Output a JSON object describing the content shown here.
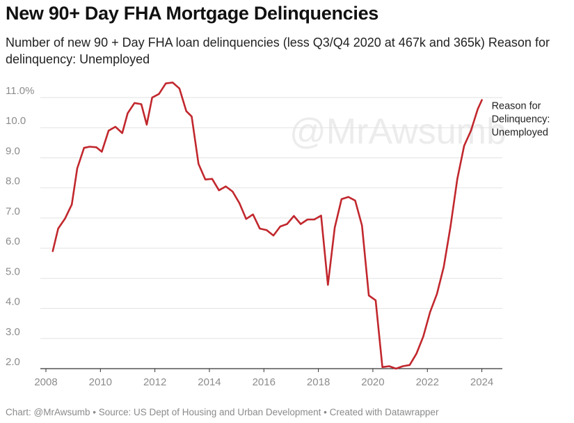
{
  "title": "New 90+ Day FHA Mortgage Delinquencies",
  "subtitle": "Number of new 90 + Day FHA loan delinquencies (less Q3/Q4 2020 at 467k and 365k) Reason for delinquency: Unemployed",
  "footer": "Chart: @MrAwsumb • Source: US Dept of Housing and Urban Development • Created with Datawrapper",
  "watermark": "@MrAwsumb",
  "colors": {
    "line": "#c1272d",
    "grid": "#e2e2e2",
    "tick": "#8c8c8c"
  },
  "chart_data": {
    "type": "line",
    "title": "New 90+ Day FHA Mortgage Delinquencies",
    "subtitle": "Number of new 90 + Day FHA loan delinquencies (less Q3/Q4 2020 at 467k and 365k) Reason for delinquency: Unemployed",
    "xlim": [
      2008,
      2024.5
    ],
    "ylim": [
      2.0,
      11.0
    ],
    "grid": true,
    "y_ticks": [
      2.0,
      3.0,
      4.0,
      5.0,
      6.0,
      7.0,
      8.0,
      9.0,
      10.0,
      11.0
    ],
    "y_tick_labels": [
      "2.0",
      "3.0",
      "4.0",
      "5.0",
      "6.0",
      "7.0",
      "8.0",
      "9.0",
      "10.0",
      "11.0%"
    ],
    "x_ticks": [
      2008,
      2010,
      2012,
      2014,
      2016,
      2018,
      2020,
      2022,
      2024
    ],
    "x_tick_labels": [
      "2008",
      "2010",
      "2012",
      "2014",
      "2016",
      "2018",
      "2020",
      "2022",
      "2024"
    ],
    "series": [
      {
        "name": "Reason for Delinquency: Unemployed",
        "label_lines": [
          "Reason for",
          "Delinquency:",
          "Unemployed"
        ],
        "points": [
          [
            2008.25,
            5.9
          ],
          [
            2008.45,
            6.65
          ],
          [
            2008.7,
            6.98
          ],
          [
            2008.95,
            7.45
          ],
          [
            2009.15,
            8.65
          ],
          [
            2009.4,
            9.33
          ],
          [
            2009.6,
            9.37
          ],
          [
            2009.85,
            9.35
          ],
          [
            2010.05,
            9.2
          ],
          [
            2010.3,
            9.9
          ],
          [
            2010.55,
            10.03
          ],
          [
            2010.8,
            9.82
          ],
          [
            2011.0,
            10.48
          ],
          [
            2011.25,
            10.82
          ],
          [
            2011.5,
            10.78
          ],
          [
            2011.7,
            10.1
          ],
          [
            2011.9,
            11.0
          ],
          [
            2012.15,
            11.12
          ],
          [
            2012.4,
            11.47
          ],
          [
            2012.65,
            11.5
          ],
          [
            2012.9,
            11.3
          ],
          [
            2013.15,
            10.55
          ],
          [
            2013.35,
            10.37
          ],
          [
            2013.6,
            8.8
          ],
          [
            2013.85,
            8.28
          ],
          [
            2014.1,
            8.3
          ],
          [
            2014.35,
            7.92
          ],
          [
            2014.6,
            8.05
          ],
          [
            2014.85,
            7.88
          ],
          [
            2015.1,
            7.5
          ],
          [
            2015.35,
            6.97
          ],
          [
            2015.6,
            7.12
          ],
          [
            2015.85,
            6.65
          ],
          [
            2016.1,
            6.6
          ],
          [
            2016.35,
            6.42
          ],
          [
            2016.6,
            6.72
          ],
          [
            2016.85,
            6.8
          ],
          [
            2017.1,
            7.07
          ],
          [
            2017.35,
            6.8
          ],
          [
            2017.6,
            6.95
          ],
          [
            2017.85,
            6.95
          ],
          [
            2018.1,
            7.08
          ],
          [
            2018.35,
            4.78
          ],
          [
            2018.6,
            6.68
          ],
          [
            2018.85,
            7.63
          ],
          [
            2019.1,
            7.7
          ],
          [
            2019.35,
            7.58
          ],
          [
            2019.6,
            6.75
          ],
          [
            2019.85,
            4.43
          ],
          [
            2020.1,
            4.27
          ],
          [
            2020.35,
            2.05
          ],
          [
            2020.6,
            2.08
          ],
          [
            2020.85,
            2.0
          ],
          [
            2021.1,
            2.08
          ],
          [
            2021.35,
            2.12
          ],
          [
            2021.6,
            2.5
          ],
          [
            2021.85,
            3.07
          ],
          [
            2022.1,
            3.88
          ],
          [
            2022.35,
            4.48
          ],
          [
            2022.6,
            5.38
          ],
          [
            2022.85,
            6.72
          ],
          [
            2023.1,
            8.3
          ],
          [
            2023.35,
            9.4
          ],
          [
            2023.6,
            9.9
          ],
          [
            2023.85,
            10.62
          ],
          [
            2024.0,
            10.92
          ]
        ]
      }
    ]
  }
}
